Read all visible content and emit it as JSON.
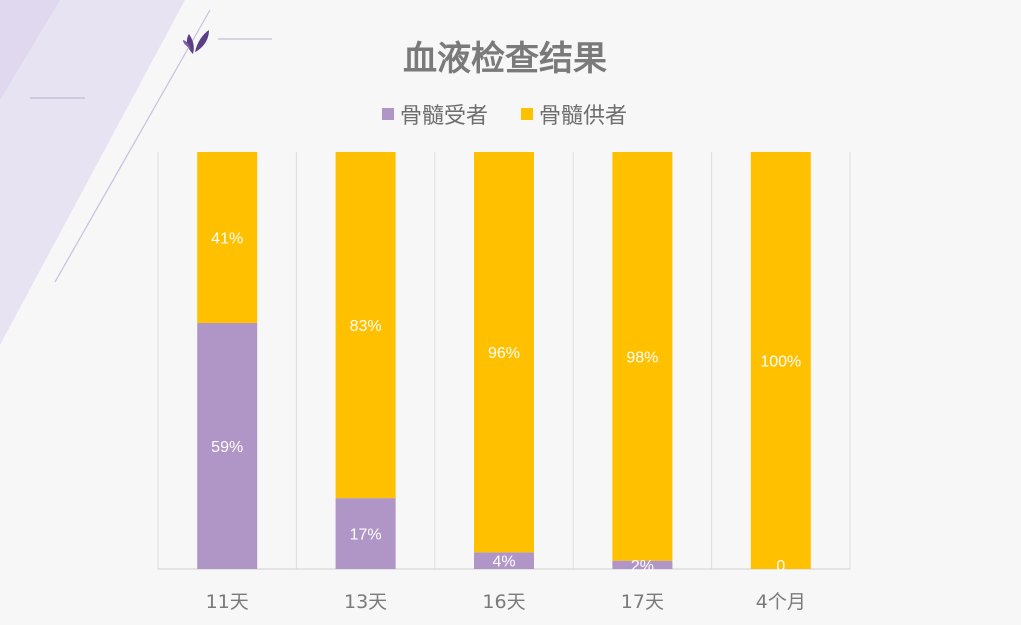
{
  "chart_data": {
    "type": "bar",
    "stacked": true,
    "percent_stacked": true,
    "title": "血液检查结果",
    "categories": [
      "11天",
      "13天",
      "16天",
      "17天",
      "4个月"
    ],
    "series": [
      {
        "name": "骨髓受者",
        "color": "#b096c6",
        "values": [
          59,
          17,
          4,
          2,
          0
        ],
        "labels": [
          "59%",
          "17%",
          "4%",
          "2%",
          "0"
        ]
      },
      {
        "name": "骨髓供者",
        "color": "#ffc000",
        "values": [
          41,
          83,
          96,
          98,
          100
        ],
        "labels": [
          "41%",
          "83%",
          "96%",
          "98%",
          "100%"
        ]
      }
    ],
    "ylim": [
      0,
      100
    ],
    "legend_position": "top",
    "grid": "vertical",
    "data_label_color": "#ffffff"
  },
  "colors": {
    "background": "#f7f7f7",
    "decor_purple": "#e6e0f2",
    "logo": "#5a3e86"
  },
  "icons": {
    "logo": "leaf-logo-icon"
  }
}
